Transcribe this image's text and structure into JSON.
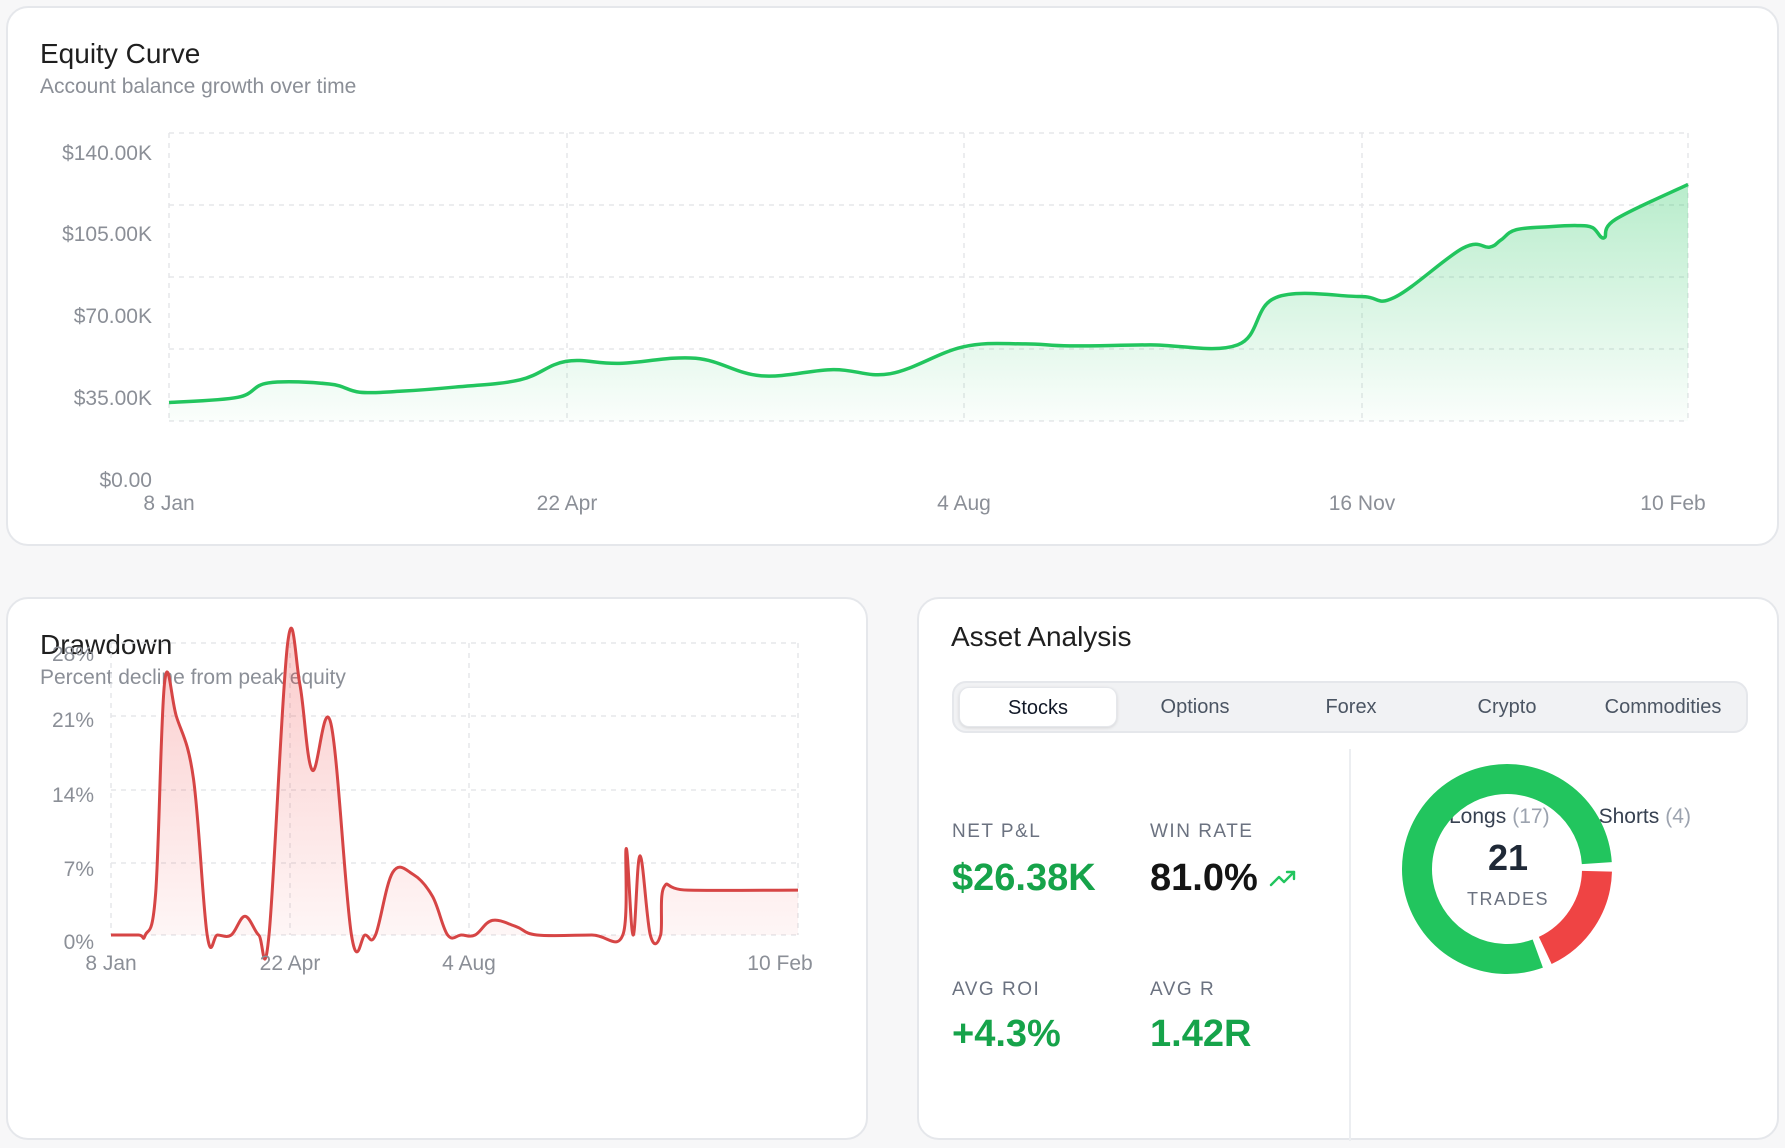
{
  "equity": {
    "title": "Equity Curve",
    "subtitle": "Account balance growth over time",
    "y_ticks": [
      "$140.00K",
      "$105.00K",
      "$70.00K",
      "$35.00K",
      "$0.00"
    ],
    "x_ticks": [
      "8 Jan",
      "22 Apr",
      "4 Aug",
      "16 Nov",
      "10 Feb"
    ]
  },
  "drawdown": {
    "title": "Drawdown",
    "subtitle": "Percent decline from peak equity",
    "y_ticks": [
      "28%",
      "21%",
      "14%",
      "7%",
      "0%"
    ],
    "x_ticks": [
      "8 Jan",
      "22 Apr",
      "4 Aug",
      "10 Feb"
    ]
  },
  "asset": {
    "title": "Asset Analysis",
    "tabs": [
      "Stocks",
      "Options",
      "Forex",
      "Crypto",
      "Commodities"
    ],
    "active_tab": "Stocks",
    "stats": {
      "net_pnl_label": "NET P&L",
      "net_pnl_value": "$26.38K",
      "win_rate_label": "WIN RATE",
      "win_rate_value": "81.0%",
      "avg_roi_label": "AVG ROI",
      "avg_roi_value": "+4.3%",
      "avg_r_label": "AVG R",
      "avg_r_value": "1.42R"
    },
    "legend": {
      "longs_label": "Longs",
      "longs_count": "(17)",
      "shorts_label": "Shorts",
      "shorts_count": "(4)"
    },
    "donut": {
      "total": "21",
      "total_label": "TRADES",
      "longs": 17,
      "shorts": 4
    },
    "trend_icon": "trending-up-icon"
  },
  "colors": {
    "green": "#22c55e",
    "green_text": "#16a34a",
    "red": "#ef4444",
    "red_line": "#d64545"
  },
  "chart_data": [
    {
      "type": "area",
      "title": "Equity Curve",
      "subtitle": "Account balance growth over time",
      "xlabel": "",
      "ylabel": "",
      "x_ticks": [
        "8 Jan",
        "22 Apr",
        "4 Aug",
        "16 Nov",
        "10 Feb"
      ],
      "ylim": [
        0,
        140000
      ],
      "grid": true,
      "x": [
        "8 Jan",
        "26 Jan",
        "3 Feb",
        "19 Feb",
        "27 Feb",
        "10 Mar",
        "24 Mar",
        "10 Apr",
        "22 Apr",
        "6 May",
        "26 May",
        "12 Jun",
        "1 Jul",
        "16 Jul",
        "4 Aug",
        "20 Aug",
        "1 Sep",
        "22 Sep",
        "15 Oct",
        "25 Oct",
        "16 Nov",
        "25 Nov",
        "13 Dec",
        "20 Dec",
        "23 Dec",
        "27 Dec",
        "5 Jan",
        "12 Jan",
        "16 Jan",
        "19 Jan",
        "22 Jan",
        "10 Feb"
      ],
      "values": [
        9000,
        11500,
        18500,
        18000,
        14000,
        14500,
        16500,
        20000,
        29000,
        28000,
        30500,
        22000,
        25000,
        23000,
        36000,
        37500,
        36500,
        37000,
        37000,
        60000,
        60500,
        60000,
        84000,
        84500,
        88000,
        93000,
        94500,
        95000,
        94000,
        89000,
        98000,
        115000
      ]
    },
    {
      "type": "area",
      "title": "Drawdown",
      "subtitle": "Percent decline from peak equity",
      "xlabel": "",
      "ylabel": "",
      "x_ticks": [
        "8 Jan",
        "22 Apr",
        "4 Aug",
        "10 Feb"
      ],
      "ylim": [
        0,
        28
      ],
      "grid": true,
      "values": [
        0,
        0,
        0,
        4,
        24.2,
        21,
        15,
        0,
        0,
        0,
        1.8,
        0,
        0,
        27.9,
        24,
        15.8,
        20.3,
        0,
        0,
        0,
        6,
        5.8,
        3.7,
        0,
        0,
        0,
        1.4,
        0.8,
        0,
        0,
        0,
        8.3,
        0,
        7.6,
        0,
        0,
        4.6,
        4.3,
        4.3
      ]
    },
    {
      "type": "pie",
      "title": "Asset Analysis",
      "categories": [
        "Longs",
        "Shorts"
      ],
      "values": [
        17,
        4
      ],
      "center_label": "21 TRADES"
    }
  ]
}
